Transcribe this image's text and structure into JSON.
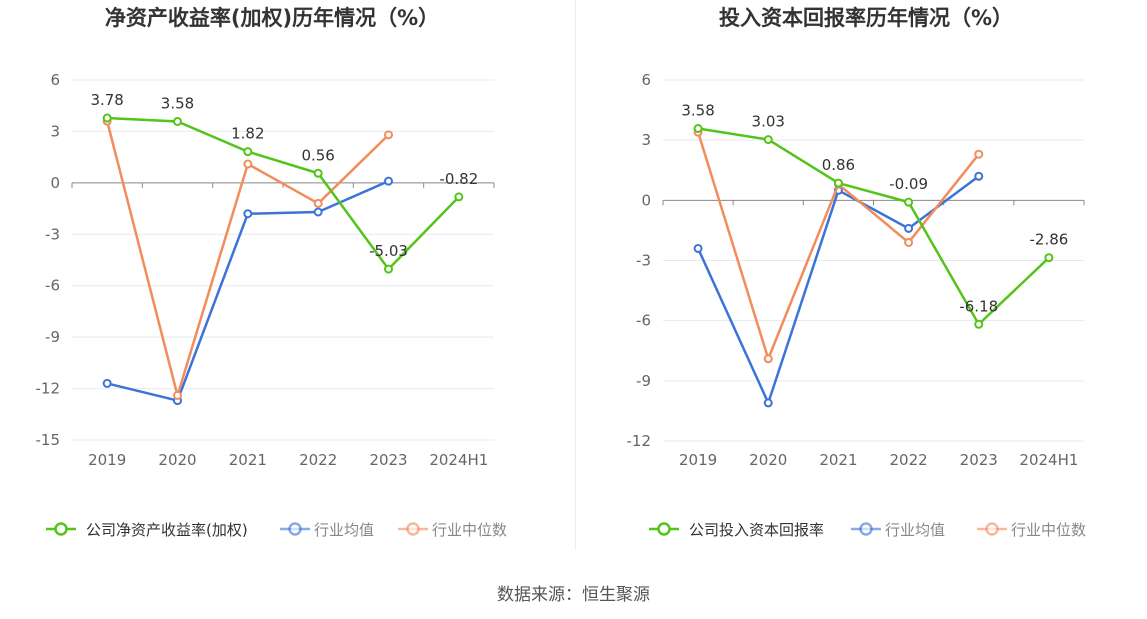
{
  "chart_data": [
    {
      "type": "line",
      "title": "净资产收益率(加权)历年情况（%）",
      "categories": [
        "2019",
        "2020",
        "2021",
        "2022",
        "2023",
        "2024H1"
      ],
      "yticks": [
        "6",
        "3",
        "0",
        "-3",
        "-6",
        "-9",
        "-12",
        "-15"
      ],
      "ylim": [
        -15,
        6
      ],
      "grid": true,
      "legend_position": "bottom",
      "series": [
        {
          "name": "公司净资产收益率(加权)",
          "color": "#52c41a",
          "values": [
            3.78,
            3.58,
            1.82,
            0.56,
            -5.03,
            -0.82
          ],
          "labels": [
            "3.78",
            "3.58",
            "1.82",
            "0.56",
            "-5.03",
            "-0.82"
          ]
        },
        {
          "name": "行业均值",
          "color": "#3b73d9",
          "values": [
            -11.7,
            -12.7,
            -1.8,
            -1.7,
            0.1,
            null
          ]
        },
        {
          "name": "行业中位数",
          "color": "#f28c5c",
          "values": [
            3.6,
            -12.4,
            1.1,
            -1.2,
            2.8,
            null
          ]
        }
      ]
    },
    {
      "type": "line",
      "title": "投入资本回报率历年情况（%）",
      "categories": [
        "2019",
        "2020",
        "2021",
        "2022",
        "2023",
        "2024H1"
      ],
      "yticks": [
        "6",
        "3",
        "0",
        "-3",
        "-6",
        "-9",
        "-12"
      ],
      "ylim": [
        -12,
        6
      ],
      "grid": true,
      "legend_position": "bottom",
      "series": [
        {
          "name": "公司投入资本回报率",
          "color": "#52c41a",
          "values": [
            3.58,
            3.03,
            0.86,
            -0.09,
            -6.18,
            -2.86
          ],
          "labels": [
            "3.58",
            "3.03",
            "0.86",
            "-0.09",
            "-6.18",
            "-2.86"
          ]
        },
        {
          "name": "行业均值",
          "color": "#3b73d9",
          "values": [
            -2.4,
            -10.1,
            0.5,
            -1.4,
            1.2,
            null
          ]
        },
        {
          "name": "行业中位数",
          "color": "#f28c5c",
          "values": [
            3.4,
            -7.9,
            0.8,
            -2.1,
            2.3,
            null
          ]
        }
      ]
    }
  ],
  "source": "数据来源：恒生聚源"
}
